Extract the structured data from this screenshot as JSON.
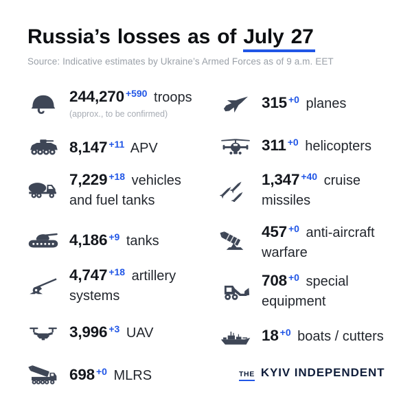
{
  "header": {
    "title_prefix": "Russia’s losses as of ",
    "title_date": "July 27",
    "source": "Source: Indicative estimates by Ukraine’s Armed Forces as of 9 a.m. EET"
  },
  "colors": {
    "accent_blue": "#2156e6",
    "icon_slate": "#3e4656",
    "value_dark": "#14171d",
    "label_dark": "#23272e",
    "muted_gray": "#a7acb4",
    "source_gray": "#9aa0a8",
    "logo_navy": "#0f1d3a",
    "title_black": "#0d0f12"
  },
  "stats": {
    "left": [
      {
        "icon": "helmet-icon",
        "value": "244,270",
        "delta": "+590",
        "label": "troops",
        "note": "(approx., to be confirmed)"
      },
      {
        "icon": "apv-icon",
        "value": "8,147",
        "delta": "+11",
        "label": "APV"
      },
      {
        "icon": "fuel-truck-icon",
        "value": "7,229",
        "delta": "+18",
        "label": "vehicles and fuel tanks"
      },
      {
        "icon": "tank-icon",
        "value": "4,186",
        "delta": "+9",
        "label": "tanks"
      },
      {
        "icon": "artillery-icon",
        "value": "4,747",
        "delta": "+18",
        "label": "artillery systems"
      },
      {
        "icon": "drone-icon",
        "value": "3,996",
        "delta": "+3",
        "label": "UAV"
      },
      {
        "icon": "mlrs-icon",
        "value": "698",
        "delta": "+0",
        "label": "MLRS"
      }
    ],
    "right": [
      {
        "icon": "jet-icon",
        "value": "315",
        "delta": "+0",
        "label": "planes"
      },
      {
        "icon": "helicopter-icon",
        "value": "311",
        "delta": "+0",
        "label": "helicopters"
      },
      {
        "icon": "missiles-icon",
        "value": "1,347",
        "delta": "+40",
        "label": "cruise missiles"
      },
      {
        "icon": "anti-aircraft-icon",
        "value": "457",
        "delta": "+0",
        "label": "anti-aircraft warfare"
      },
      {
        "icon": "loader-icon",
        "value": "708",
        "delta": "+0",
        "label": "special equipment"
      },
      {
        "icon": "ship-icon",
        "value": "18",
        "delta": "+0",
        "label": "boats / cutters"
      }
    ]
  },
  "logo": {
    "the": "THE",
    "name": "KYIV INDEPENDENT"
  },
  "chart_data": {
    "type": "table",
    "title": "Russia’s losses as of July 27",
    "source": "Source: Indicative estimates by Ukraine’s Armed Forces as of 9 a.m. EET",
    "categories": [
      "troops",
      "APV",
      "vehicles and fuel tanks",
      "tanks",
      "artillery systems",
      "UAV",
      "MLRS",
      "planes",
      "helicopters",
      "cruise missiles",
      "anti-aircraft warfare",
      "special equipment",
      "boats / cutters"
    ],
    "values": [
      244270,
      8147,
      7229,
      4186,
      4747,
      3996,
      698,
      315,
      311,
      1347,
      457,
      708,
      18
    ],
    "daily_change": [
      590,
      11,
      18,
      9,
      18,
      3,
      0,
      0,
      0,
      40,
      0,
      0,
      0
    ],
    "notes": [
      "troops value is approx., to be confirmed"
    ]
  }
}
